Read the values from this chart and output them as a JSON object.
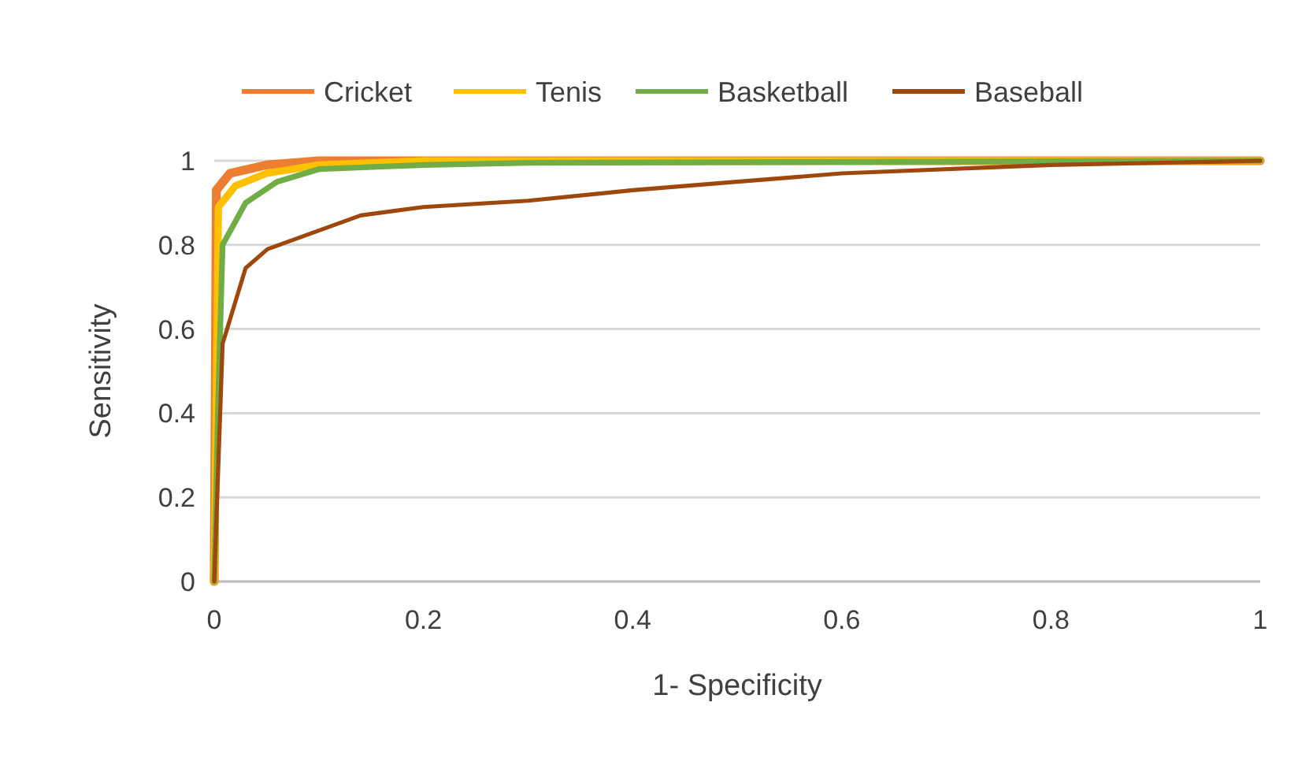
{
  "chart_data": {
    "type": "line",
    "xlabel": "1- Specificity",
    "ylabel": "Sensitivity",
    "xlim": [
      0,
      1
    ],
    "ylim": [
      0,
      1
    ],
    "xticks": [
      0,
      0.2,
      0.4,
      0.6,
      0.8,
      1
    ],
    "yticks": [
      0,
      0.2,
      0.4,
      0.6,
      0.8,
      1
    ],
    "grid": "y",
    "legend": "top",
    "marker": "none",
    "line_style": "solid",
    "series": [
      {
        "name": "Cricket",
        "color": "#ed7d31",
        "x": [
          0,
          0.002,
          0.015,
          0.05,
          0.1,
          1
        ],
        "values": [
          0,
          0.93,
          0.97,
          0.99,
          1,
          1
        ]
      },
      {
        "name": "Tenis",
        "color": "#ffc000",
        "x": [
          0,
          0.004,
          0.02,
          0.05,
          0.1,
          0.2,
          1
        ],
        "values": [
          0,
          0.89,
          0.94,
          0.97,
          0.99,
          1,
          1
        ]
      },
      {
        "name": "Basketball",
        "color": "#70ad47",
        "x": [
          0,
          0.004,
          0.008,
          0.03,
          0.06,
          0.1,
          0.2,
          0.3,
          1
        ],
        "values": [
          0,
          0.45,
          0.8,
          0.9,
          0.95,
          0.98,
          0.99,
          0.995,
          1
        ]
      },
      {
        "name": "Baseball",
        "color": "#9e480e",
        "x": [
          0,
          0.008,
          0.03,
          0.051,
          0.14,
          0.2,
          0.3,
          0.4,
          0.5,
          0.6,
          0.8,
          1
        ],
        "values": [
          0,
          0.565,
          0.745,
          0.79,
          0.87,
          0.89,
          0.905,
          0.93,
          0.95,
          0.97,
          0.99,
          1
        ]
      }
    ]
  }
}
